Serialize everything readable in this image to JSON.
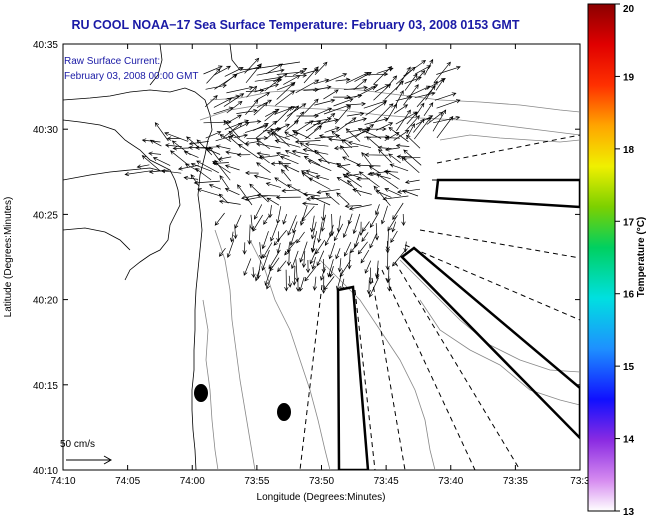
{
  "title": "RU COOL  NOAA−17  Sea Surface Temperature:  February 03, 2008 0153 GMT",
  "annotation": {
    "line1": "Raw Surface Current:",
    "line2": "February 03, 2008 00:00 GMT"
  },
  "axes": {
    "xlabel": "Longitude (Degrees:Minutes)",
    "ylabel": "Latitude (Degrees:Minutes)",
    "x_ticks": [
      "74:10",
      "74:05",
      "74:00",
      "73:55",
      "73:50",
      "73:45",
      "73:40",
      "73:35",
      "73:3"
    ],
    "y_ticks": [
      "40:35",
      "40:30",
      "40:25",
      "40:20",
      "40:15",
      "40:10"
    ]
  },
  "scale_label": "50 cm/s",
  "colorbar": {
    "label": "Temperature (°C)",
    "min": 13,
    "max": 20,
    "ticks": [
      "20",
      "19",
      "18",
      "17",
      "16",
      "15",
      "14",
      "13"
    ]
  },
  "colors": {
    "title": "#1a1aa6",
    "annotation": "#1a1aa6",
    "land": "#ffffff",
    "contour": "#888888"
  }
}
